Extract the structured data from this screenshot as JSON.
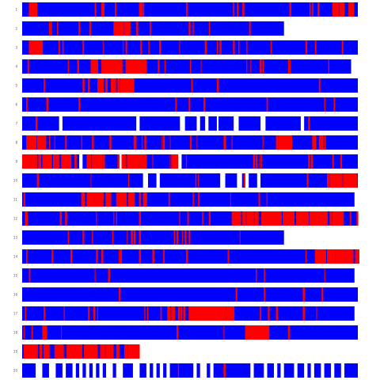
{
  "chart_data": {
    "type": "heatmap",
    "title": "",
    "xlabel": "",
    "ylabel": "",
    "grid": false,
    "legend": "none",
    "colors": {
      "low": "#0000ff",
      "high": "#ff0000",
      "gap": "#ffffff"
    },
    "x_max": 100,
    "rows": [
      {
        "label": "1",
        "length": 100,
        "red_density": 0.18,
        "red_zones": [
          [
            2,
            5
          ],
          [
            91,
            98
          ]
        ],
        "gaps": []
      },
      {
        "label": "2",
        "length": 78,
        "red_density": 0.16,
        "red_zones": [
          [
            27,
            31
          ]
        ],
        "gaps": []
      },
      {
        "label": "3",
        "length": 100,
        "red_density": 0.18,
        "red_zones": [
          [
            2,
            6
          ]
        ],
        "gaps": []
      },
      {
        "label": "4",
        "length": 98,
        "red_density": 0.15,
        "red_zones": [
          [
            20,
            36
          ]
        ],
        "gaps": []
      },
      {
        "label": "5",
        "length": 100,
        "red_density": 0.15,
        "red_zones": [
          [
            22,
            33
          ]
        ],
        "gaps": []
      },
      {
        "label": "6",
        "length": 100,
        "red_density": 0.1,
        "red_zones": [],
        "gaps": []
      },
      {
        "label": "7",
        "length": 100,
        "red_density": 0.05,
        "red_zones": [],
        "gaps": [
          [
            11,
            12
          ],
          [
            34,
            35
          ],
          [
            47,
            48.5
          ],
          [
            52,
            53
          ],
          [
            54.5,
            55.5
          ],
          [
            58,
            58.5
          ],
          [
            63,
            64.5
          ],
          [
            71,
            72.5
          ],
          [
            83,
            84
          ]
        ]
      },
      {
        "label": "8",
        "length": 100,
        "red_density": 0.3,
        "red_zones": [
          [
            1,
            6
          ],
          [
            75,
            80
          ],
          [
            86,
            90
          ]
        ],
        "gaps": []
      },
      {
        "label": "9",
        "length": 100,
        "red_density": 0.15,
        "red_zones": [
          [
            0,
            16
          ],
          [
            19,
            24
          ],
          [
            28,
            36
          ],
          [
            44,
            46
          ]
        ],
        "gaps": [
          [
            17,
            18
          ],
          [
            29,
            29.6
          ],
          [
            46.5,
            47.5
          ]
        ]
      },
      {
        "label": "10",
        "length": 100,
        "red_density": 0.15,
        "red_zones": [
          [
            90,
            100
          ]
        ],
        "gaps": [
          [
            36,
            37.5
          ],
          [
            40,
            41
          ],
          [
            59,
            60.5
          ],
          [
            64,
            65.5
          ],
          [
            66.5,
            67.5
          ],
          [
            70,
            71
          ]
        ]
      },
      {
        "label": "11",
        "length": 99,
        "red_density": 0.15,
        "red_zones": [
          [
            17,
            23
          ],
          [
            24,
            36
          ]
        ],
        "gaps": []
      },
      {
        "label": "12",
        "length": 100,
        "red_density": 0.2,
        "red_zones": [
          [
            62,
            95
          ]
        ],
        "gaps": []
      },
      {
        "label": "13",
        "length": 78,
        "red_density": 0.25,
        "red_zones": [],
        "gaps": []
      },
      {
        "label": "14",
        "length": 100,
        "red_density": 0.22,
        "red_zones": [
          [
            87,
            100
          ]
        ],
        "gaps": []
      },
      {
        "label": "15",
        "length": 99,
        "red_density": 0.08,
        "red_zones": [],
        "gaps": []
      },
      {
        "label": "16",
        "length": 100,
        "red_density": 0.1,
        "red_zones": [],
        "gaps": []
      },
      {
        "label": "17",
        "length": 99,
        "red_density": 0.12,
        "red_zones": [
          [
            43,
            63
          ]
        ],
        "gaps": []
      },
      {
        "label": "18",
        "length": 100,
        "red_density": 0.12,
        "red_zones": [
          [
            4,
            7
          ],
          [
            65,
            73
          ]
        ],
        "gaps": []
      },
      {
        "label": "19",
        "length": 34,
        "red_density": 0.9,
        "red_zones": [
          [
            0,
            34
          ]
        ],
        "gaps": []
      },
      {
        "label": "20",
        "length": 100,
        "red_density": 0.05,
        "red_zones": [],
        "gaps": [
          [
            4,
            6
          ],
          [
            8,
            10
          ],
          [
            12,
            13
          ],
          [
            15,
            16
          ],
          [
            17,
            18
          ],
          [
            19,
            20
          ],
          [
            21,
            22
          ],
          [
            23,
            24
          ],
          [
            25,
            27
          ],
          [
            28,
            30
          ],
          [
            33,
            35
          ],
          [
            37,
            38
          ],
          [
            39,
            40
          ],
          [
            41,
            42
          ],
          [
            43,
            44
          ],
          [
            51,
            52
          ],
          [
            53,
            55
          ],
          [
            56,
            57
          ],
          [
            68,
            69
          ],
          [
            72,
            73
          ],
          [
            75,
            76
          ],
          [
            77,
            78
          ],
          [
            81,
            82
          ],
          [
            84,
            85
          ],
          [
            86,
            87
          ],
          [
            89,
            90
          ],
          [
            92,
            93
          ],
          [
            95,
            96
          ]
        ]
      }
    ]
  }
}
